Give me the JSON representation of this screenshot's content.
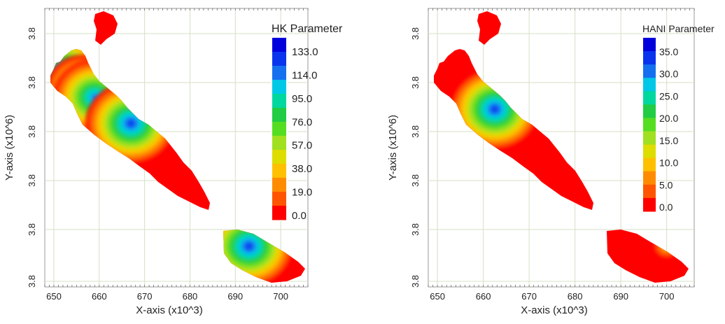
{
  "chart_data": [
    {
      "type": "heatmap",
      "xlabel": "X-axis (x10^3)",
      "ylabel": "Y-axis (x10^6)",
      "x_ticks": [
        "650",
        "660",
        "670",
        "680",
        "690",
        "700"
      ],
      "y_ticks": [
        "3.8",
        "3.8",
        "3.8",
        "3.8",
        "3.8",
        "3.8"
      ],
      "xlim": [
        648,
        706
      ],
      "grid": true,
      "legend": {
        "title": "HK Parameter",
        "position": "top-right",
        "labels": [
          "133.0",
          "114.0",
          "95.0",
          "76.0",
          "57.0",
          "38.0",
          "19.0",
          "0.0"
        ],
        "values": [
          133,
          114,
          95,
          76,
          57,
          38,
          19,
          0
        ],
        "colors": [
          "#0000dd",
          "#0a33ee",
          "#1570f0",
          "#00c8e6",
          "#00d8a0",
          "#22cc44",
          "#55dd22",
          "#a0e020",
          "#dddd00",
          "#ffc000",
          "#ff8c00",
          "#ff5500",
          "#ff0000"
        ]
      },
      "hotspots": [
        {
          "x": 652,
          "value": 125
        },
        {
          "x": 656.5,
          "value": 100
        },
        {
          "x": 659,
          "value": 110
        },
        {
          "x": 667,
          "value": 120
        },
        {
          "x": 693,
          "value": 125
        }
      ]
    },
    {
      "type": "heatmap",
      "xlabel": "X-axis (x10^3)",
      "ylabel": "Y-axis (x10^6)",
      "x_ticks": [
        "650",
        "660",
        "670",
        "680",
        "690",
        "700"
      ],
      "y_ticks": [
        "3.8",
        "3.8",
        "3.8",
        "3.8",
        "3.8",
        "3.8"
      ],
      "xlim": [
        648,
        706
      ],
      "grid": true,
      "legend": {
        "title": "HANI Parameter",
        "position": "top-right",
        "labels": [
          "35.0",
          "30.0",
          "25.0",
          "20.0",
          "15.0",
          "10.0",
          "5.0",
          "0.0"
        ],
        "values": [
          35,
          30,
          25,
          20,
          15,
          10,
          5,
          0
        ],
        "colors": [
          "#0000dd",
          "#0a33ee",
          "#1570f0",
          "#00c8e6",
          "#00d8a0",
          "#22cc44",
          "#55dd22",
          "#a0e020",
          "#dddd00",
          "#ffc000",
          "#ff8c00",
          "#ff5500",
          "#ff0000"
        ]
      },
      "hotspots": [
        {
          "x": 662.5,
          "value": 33
        },
        {
          "x": 700,
          "value": 10
        }
      ]
    }
  ]
}
